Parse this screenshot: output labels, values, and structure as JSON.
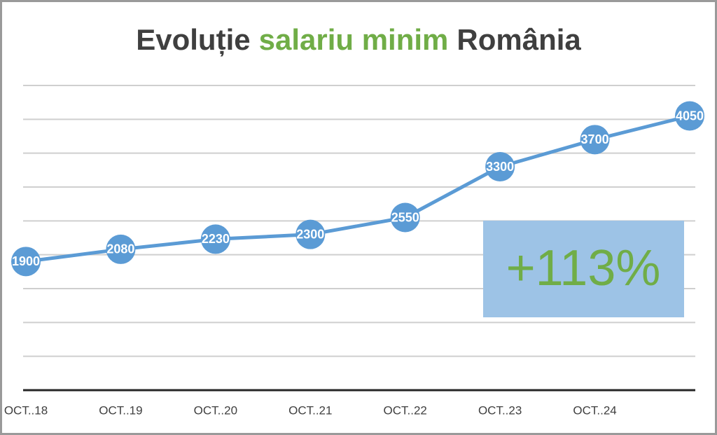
{
  "chart_data": {
    "type": "line",
    "title": [
      {
        "text": "Evoluție",
        "color": "#3f3f3f"
      },
      {
        "text": "salariu minim",
        "color": "#70ad47"
      },
      {
        "text": "România",
        "color": "#3f3f3f"
      }
    ],
    "categories": [
      "OCT..18",
      "OCT..19",
      "OCT..20",
      "OCT..21",
      "OCT..22",
      "OCT..23",
      "OCT..24",
      null
    ],
    "values": [
      1900,
      2080,
      2230,
      2300,
      2550,
      3300,
      3700,
      4050
    ],
    "color": "#5b9bd5",
    "data_label_color": "#ffffff",
    "ylim": [
      0,
      4500
    ],
    "yticks": [
      0,
      500,
      1000,
      1500,
      2000,
      2500,
      3000,
      3500,
      4000,
      4500
    ],
    "grid": true,
    "show_ytick_labels": false,
    "annotation": {
      "text": "+113%",
      "fill": "#9dc3e6",
      "color": "#70ad47"
    }
  }
}
